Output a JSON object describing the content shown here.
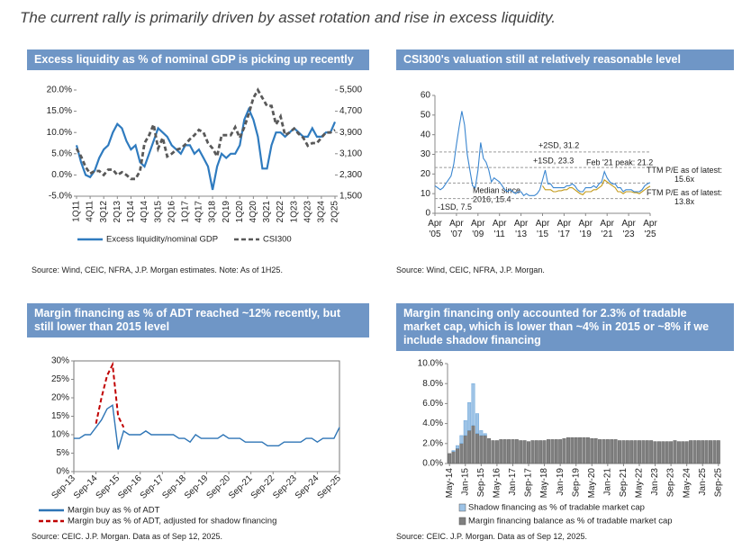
{
  "title": "The current rally is primarily driven by asset rotation and rise in excess liquidity.",
  "chart_data": [
    {
      "type": "line",
      "title": "Excess liquidity as % of nominal GDP is picking up recently",
      "source": "Source: Wind, CEIC, NFRA, J.P. Morgan estimates. Note: As of 1H25.",
      "categories": [
        "1Q11",
        null,
        null,
        "4Q11",
        null,
        null,
        "3Q12",
        null,
        null,
        "2Q13",
        null,
        null,
        "1Q14",
        null,
        null,
        "4Q14",
        null,
        null,
        "3Q15",
        null,
        null,
        "2Q16",
        null,
        null,
        "1Q17",
        null,
        null,
        "4Q17",
        null,
        null,
        "3Q18",
        null,
        null,
        "2Q19",
        null,
        null,
        "1Q20",
        null,
        null,
        "4Q20",
        null,
        null,
        "3Q21",
        null,
        null,
        "2Q22",
        null,
        null,
        "1Q23",
        null,
        null,
        "4Q23",
        null,
        null,
        "3Q24",
        null,
        null,
        "2Q25"
      ],
      "series": [
        {
          "name": "Excess liquidity/nominal GDP",
          "color": "#2f7bbf",
          "values": [
            7,
            3,
            0,
            -0.5,
            1,
            4,
            6,
            7,
            10,
            12,
            11,
            8,
            6,
            7,
            3,
            2,
            5,
            8,
            11,
            10,
            9,
            7,
            6,
            5,
            7,
            7,
            5,
            6,
            4,
            2,
            -3.5,
            2,
            5,
            4,
            5,
            5,
            7,
            13,
            15.5,
            13,
            9,
            1.5,
            1.5,
            7,
            10,
            10,
            9,
            10,
            11,
            10,
            9,
            9,
            11,
            9,
            9,
            10,
            10,
            12.5
          ]
        },
        {
          "name": "CSI300",
          "color": "#595959",
          "style": "dashed",
          "axis": "y2",
          "values": [
            3300,
            3000,
            2600,
            2350,
            2450,
            2450,
            2300,
            2500,
            2500,
            2300,
            2400,
            2300,
            2150,
            2150,
            2450,
            3500,
            3800,
            4200,
            3300,
            3700,
            3000,
            3100,
            3250,
            3300,
            3450,
            3650,
            3800,
            4000,
            3900,
            3500,
            3300,
            3000,
            3800,
            3800,
            3800,
            4100,
            3700,
            4100,
            4600,
            5200,
            5500,
            5200,
            4900,
            4900,
            4200,
            4500,
            3800,
            3900,
            4050,
            3850,
            3700,
            3400,
            3500,
            3500,
            3700,
            3900,
            3900,
            4000
          ]
        }
      ],
      "ylim": [
        -5,
        20
      ],
      "yticks": [
        {
          "value": -5,
          "label": "-5.0%"
        },
        {
          "value": 0,
          "label": "0.0%"
        },
        {
          "value": 5,
          "label": "5.0%"
        },
        {
          "value": 10,
          "label": "10.0%"
        },
        {
          "value": 15,
          "label": "15.0%"
        },
        {
          "value": 20,
          "label": "20.0%"
        }
      ],
      "y2lim": [
        1500,
        5500
      ],
      "y2ticks": [
        {
          "value": 1500,
          "label": "1,500"
        },
        {
          "value": 2300,
          "label": "2,300"
        },
        {
          "value": 3100,
          "label": "3,100"
        },
        {
          "value": 3900,
          "label": "3,900"
        },
        {
          "value": 4700,
          "label": "4,700"
        },
        {
          "value": 5500,
          "label": "5,500"
        }
      ],
      "legend": "bottom"
    },
    {
      "type": "line",
      "title": "CSI300's valuation still at relatively reasonable level",
      "source": "Source: Wind, CEIC, NFRA, J.P. Morgan.",
      "categories": [
        "Apr '05",
        null,
        null,
        null,
        null,
        null,
        null,
        null,
        "Apr '07",
        null,
        null,
        null,
        null,
        null,
        null,
        null,
        "Apr '09",
        null,
        null,
        null,
        null,
        null,
        null,
        null,
        "Apr '11",
        null,
        null,
        null,
        null,
        null,
        null,
        null,
        "Apr '13",
        null,
        null,
        null,
        null,
        null,
        null,
        null,
        "Apr '15",
        null,
        null,
        null,
        null,
        null,
        null,
        null,
        "Apr '17",
        null,
        null,
        null,
        null,
        null,
        null,
        null,
        "Apr '19",
        null,
        null,
        null,
        null,
        null,
        null,
        null,
        "Apr '21",
        null,
        null,
        null,
        null,
        null,
        null,
        null,
        "Apr '23",
        null,
        null,
        null,
        null,
        null,
        null,
        null,
        "Apr '25"
      ],
      "series": [
        {
          "name": "TTM P/E",
          "color": "#3a86d0",
          "values": [
            14,
            13,
            12,
            13,
            15,
            17,
            19,
            25,
            35,
            44,
            52,
            45,
            30,
            22,
            14,
            13,
            22,
            36,
            28,
            26,
            22,
            16,
            18,
            17,
            16,
            14,
            12,
            11,
            12,
            11,
            10,
            11,
            11,
            9,
            10,
            9,
            9,
            9,
            10,
            12,
            17,
            22,
            15,
            15,
            13,
            13,
            13,
            13,
            13,
            14,
            14,
            15,
            14,
            12,
            11,
            11,
            13,
            13,
            13,
            14,
            13,
            15,
            16,
            21.2,
            18,
            16,
            15,
            15,
            13,
            13,
            11,
            12,
            12,
            12,
            11,
            11,
            11,
            12,
            14,
            15,
            15.6
          ]
        },
        {
          "name": "FTM P/E",
          "color": "#c39a1a",
          "values": [
            null,
            null,
            null,
            null,
            null,
            null,
            null,
            null,
            null,
            null,
            null,
            null,
            null,
            null,
            null,
            null,
            null,
            null,
            null,
            null,
            null,
            null,
            null,
            null,
            null,
            null,
            null,
            null,
            null,
            null,
            null,
            null,
            null,
            null,
            null,
            null,
            null,
            null,
            null,
            null,
            14,
            12,
            12,
            12,
            11,
            11,
            11.5,
            11.5,
            12,
            12,
            13,
            13,
            12,
            11,
            10,
            9.5,
            11,
            11,
            11,
            12,
            12,
            13,
            14,
            17,
            16,
            15,
            14,
            13,
            11,
            11,
            10,
            11,
            11,
            11,
            10.5,
            10.5,
            10,
            11,
            12,
            13,
            13.8
          ]
        }
      ],
      "reference_lines": [
        {
          "value": 31.2,
          "label": "+2SD, 31.2"
        },
        {
          "value": 23.3,
          "label": "+1SD, 23.3"
        },
        {
          "value": 15.4,
          "label": "Median since 2016, 15.4"
        },
        {
          "value": 7.5,
          "label": "-1SD, 7.5"
        }
      ],
      "annotations": [
        "Feb '21 peak: 21.2",
        "TTM P/E as of latest: 15.6x",
        "FTM P/E as of latest: 13.8x"
      ],
      "ylim": [
        0,
        60
      ],
      "yticks": [
        0,
        10,
        20,
        30,
        40,
        50,
        60
      ]
    },
    {
      "type": "line",
      "title": "Margin financing as % of ADT reached ~12% recently, but still lower than 2015 level",
      "source": "Source: CEIC. J.P. Morgan. Data as of Sep 12, 2025.",
      "categories": [
        "Sep-13",
        null,
        null,
        null,
        "Sep-14",
        null,
        null,
        null,
        "Sep-15",
        null,
        null,
        null,
        "Sep-16",
        null,
        null,
        null,
        "Sep-17",
        null,
        null,
        null,
        "Sep-18",
        null,
        null,
        null,
        "Sep-19",
        null,
        null,
        null,
        "Sep-20",
        null,
        null,
        null,
        "Sep-21",
        null,
        null,
        null,
        "Sep-22",
        null,
        null,
        null,
        "Sep-23",
        null,
        null,
        null,
        "Sep-24",
        null,
        null,
        null,
        "Sep-25"
      ],
      "series": [
        {
          "name": "Margin buy as % of ADT",
          "color": "#2e75b6",
          "values": [
            9,
            9,
            10,
            10,
            12,
            14,
            17,
            18,
            6,
            11,
            10,
            10,
            10,
            11,
            10,
            10,
            10,
            10,
            10,
            9,
            9,
            8,
            10,
            9,
            9,
            9,
            9,
            10,
            9,
            9,
            9,
            8,
            8,
            8,
            8,
            7,
            7,
            7,
            8,
            8,
            8,
            8,
            9,
            9,
            8,
            9,
            9,
            9,
            12
          ]
        },
        {
          "name": "Margin buy as % of ADT, adjusted for shadow financing",
          "color": "#c00000",
          "style": "dashed",
          "values": [
            null,
            null,
            null,
            null,
            13,
            20,
            26,
            29,
            15,
            12,
            null,
            null,
            null,
            null,
            null,
            null,
            null,
            null,
            null,
            null,
            null,
            null,
            null,
            null,
            null,
            null,
            null,
            null,
            null,
            null,
            null,
            null,
            null,
            null,
            null,
            null,
            null,
            null,
            null,
            null,
            null,
            null,
            null,
            null,
            null,
            null,
            null,
            null,
            null
          ]
        }
      ],
      "ylim": [
        0,
        30
      ],
      "yticks": [
        {
          "value": 0,
          "label": "0%"
        },
        {
          "value": 5,
          "label": "5%"
        },
        {
          "value": 10,
          "label": "10%"
        },
        {
          "value": 15,
          "label": "15%"
        },
        {
          "value": 20,
          "label": "20%"
        },
        {
          "value": 25,
          "label": "25%"
        },
        {
          "value": 30,
          "label": "30%"
        }
      ],
      "legend": "bottom"
    },
    {
      "type": "bar",
      "stacked": true,
      "title": "Margin financing only accounted for 2.3% of tradable market cap, which is lower than ~4% in 2015 or ~8% if we include shadow financing",
      "source": "Source: CEIC. J.P. Morgan. Data as of Sep 12, 2025.",
      "categories": [
        "May-14",
        null,
        null,
        null,
        "Jan-15",
        null,
        null,
        null,
        "Sep-15",
        null,
        null,
        null,
        "May-16",
        null,
        null,
        null,
        "Jan-17",
        null,
        null,
        null,
        "Sep-17",
        null,
        null,
        null,
        "May-18",
        null,
        null,
        null,
        "Jan-19",
        null,
        null,
        null,
        "Sep-19",
        null,
        null,
        null,
        "May-20",
        null,
        null,
        null,
        "Jan-21",
        null,
        null,
        null,
        "Sep-21",
        null,
        null,
        null,
        "May-22",
        null,
        null,
        null,
        "Jan-23",
        null,
        null,
        null,
        "Sep-23",
        null,
        null,
        null,
        "May-24",
        null,
        null,
        null,
        "Jan-25",
        null,
        null,
        null,
        "Sep-25"
      ],
      "series": [
        {
          "name": "Shadow financing as % of tradable market cap",
          "color": "#9dc3e6",
          "values": [
            0,
            0.1,
            0.3,
            0.8,
            1.5,
            2.8,
            4.2,
            2,
            0.5,
            0.2,
            0,
            0,
            0,
            0,
            0,
            0,
            0,
            0,
            0,
            0,
            0,
            0,
            0,
            0,
            0,
            0,
            0,
            0,
            0,
            0,
            0,
            0,
            0,
            0,
            0,
            0,
            0,
            0,
            0,
            0,
            0,
            0,
            0,
            0,
            0,
            0,
            0,
            0,
            0,
            0,
            0,
            0,
            0,
            0,
            0,
            0,
            0,
            0,
            0,
            0,
            0,
            0,
            0,
            0,
            0,
            0,
            0,
            0,
            0
          ]
        },
        {
          "name": "Margin financing balance as % of tradable market cap",
          "color": "#7f7f7f",
          "values": [
            1,
            1.2,
            1.5,
            2,
            2.8,
            3.3,
            3.8,
            3,
            2.8,
            2.8,
            2.5,
            2.3,
            2.3,
            2.4,
            2.4,
            2.4,
            2.4,
            2.4,
            2.3,
            2.3,
            2.2,
            2.3,
            2.3,
            2.3,
            2.3,
            2.4,
            2.4,
            2.4,
            2.4,
            2.5,
            2.6,
            2.6,
            2.6,
            2.6,
            2.6,
            2.6,
            2.5,
            2.5,
            2.4,
            2.4,
            2.4,
            2.4,
            2.4,
            2.3,
            2.3,
            2.3,
            2.3,
            2.3,
            2.3,
            2.3,
            2.3,
            2.3,
            2.2,
            2.2,
            2.2,
            2.2,
            2.2,
            2.3,
            2.2,
            2.2,
            2.2,
            2.3,
            2.3,
            2.3,
            2.3,
            2.3,
            2.3,
            2.3,
            2.3
          ]
        }
      ],
      "ylim": [
        0,
        10
      ],
      "yticks": [
        {
          "value": 0,
          "label": "0.0%"
        },
        {
          "value": 2,
          "label": "2.0%"
        },
        {
          "value": 4,
          "label": "4.0%"
        },
        {
          "value": 6,
          "label": "6.0%"
        },
        {
          "value": 8,
          "label": "8.0%"
        },
        {
          "value": 10,
          "label": "10.0%"
        }
      ],
      "legend": "bottom"
    }
  ]
}
